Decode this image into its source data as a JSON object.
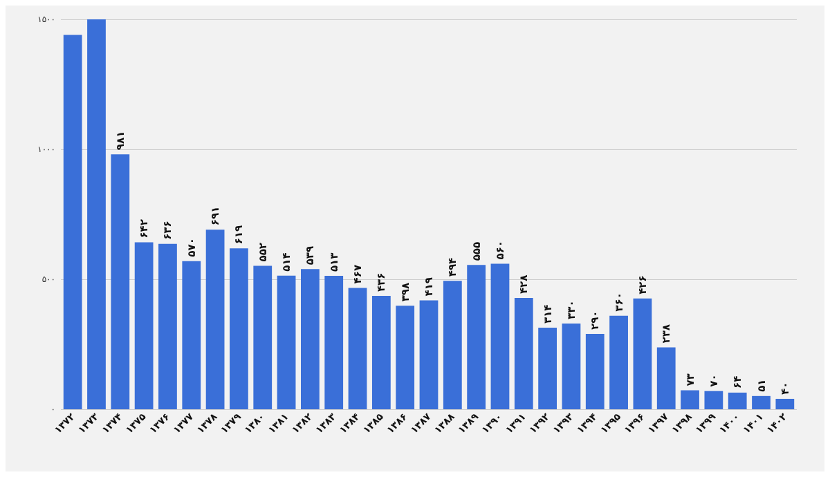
{
  "chart_data": {
    "type": "bar",
    "categories": [
      "۱۳۷۲",
      "۱۳۷۳",
      "۱۳۷۴",
      "۱۳۷۵",
      "۱۳۷۶",
      "۱۳۷۷",
      "۱۳۷۸",
      "۱۳۷۹",
      "۱۳۸۰",
      "۱۳۸۱",
      "۱۳۸۲",
      "۱۳۸۳",
      "۱۳۸۴",
      "۱۳۸۵",
      "۱۳۸۶",
      "۱۳۸۷",
      "۱۳۸۸",
      "۱۳۸۹",
      "۱۳۹۰",
      "۱۳۹۱",
      "۱۳۹۲",
      "۱۳۹۳",
      "۱۳۹۴",
      "۱۳۹۵",
      "۱۳۹۶",
      "۱۳۹۷",
      "۱۳۹۸",
      "۱۳۹۹",
      "۱۴۰۰",
      "۱۴۰۱",
      "۱۴۰۲"
    ],
    "values": [
      1440,
      1500,
      981,
      642,
      636,
      570,
      691,
      619,
      552,
      514,
      539,
      513,
      467,
      436,
      398,
      419,
      494,
      555,
      560,
      428,
      314,
      330,
      290,
      360,
      426,
      238,
      73,
      70,
      64,
      51,
      40
    ],
    "value_labels": [
      null,
      null,
      "۹۸۱",
      "۶۴۲",
      "۶۳۶",
      "۵۷۰",
      "۶۹۱",
      "۶۱۹",
      "۵۵۲",
      "۵۱۴",
      "۵۳۹",
      "۵۱۳",
      "۴۶۷",
      "۴۳۶",
      "۳۹۸",
      "۴۱۹",
      "۴۹۴",
      "۵۵۵",
      "۵۶۰",
      "۴۲۸",
      "۳۱۴",
      "۳۳۰",
      "۲۹۰",
      "۳۶۰",
      "۴۲۶",
      "۲۳۸",
      "۷۳",
      "۷۰",
      "۶۴",
      "۵۱",
      "۴۰"
    ],
    "color": "#3a6fd8",
    "ylim": [
      0,
      1500
    ],
    "yticks": [
      {
        "value": 0,
        "label": "۰"
      },
      {
        "value": 500,
        "label": "۵۰۰"
      },
      {
        "value": 1000,
        "label": "۱۰۰۰"
      },
      {
        "value": 1500,
        "label": "۱۵۰۰"
      }
    ],
    "grid": "y"
  }
}
